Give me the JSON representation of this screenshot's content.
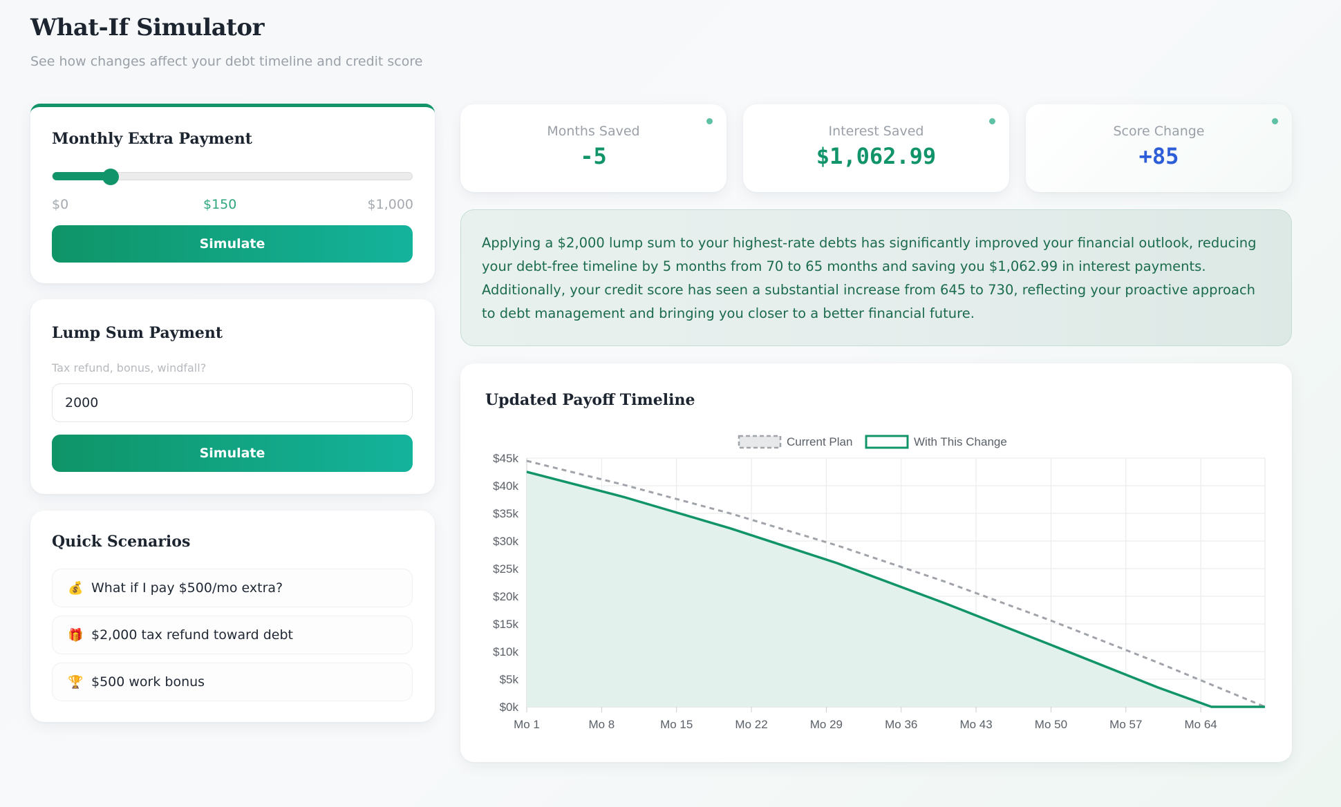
{
  "header": {
    "title": "What-If Simulator",
    "subtitle": "See how changes affect your debt timeline and credit score"
  },
  "extra_payment": {
    "title": "Monthly Extra Payment",
    "min_label": "$0",
    "current_label": "$150",
    "max_label": "$1,000",
    "min": 0,
    "max": 1000,
    "value": 150,
    "button_label": "Simulate"
  },
  "lump_sum": {
    "title": "Lump Sum Payment",
    "hint": "Tax refund, bonus, windfall?",
    "value": "2000",
    "button_label": "Simulate"
  },
  "quick_scenarios": {
    "title": "Quick Scenarios",
    "items": [
      {
        "icon": "money-bag-icon",
        "glyph": "💰",
        "label": "What if I pay $500/mo extra?"
      },
      {
        "icon": "gift-icon",
        "glyph": "🎁",
        "label": "$2,000 tax refund toward debt"
      },
      {
        "icon": "trophy-icon",
        "glyph": "🏆",
        "label": "$500 work bonus"
      }
    ]
  },
  "stats": {
    "months": {
      "label": "Months Saved",
      "value": "-5",
      "color": "#12946a"
    },
    "interest": {
      "label": "Interest Saved",
      "value": "$1,062.99",
      "color": "#12946a"
    },
    "score": {
      "label": "Score Change",
      "value": "+85",
      "color": "#2d5ed8"
    }
  },
  "insight": {
    "text": "Applying a $2,000 lump sum to your highest-rate debts has significantly improved your financial outlook, reducing your debt-free timeline by 5 months from 70 to 65 months and saving you $1,062.99 in interest payments. Additionally, your credit score has seen a substantial increase from 645 to 730, reflecting your proactive approach to debt management and bringing you closer to a better financial future."
  },
  "chart": {
    "title": "Updated Payoff Timeline"
  },
  "chart_data": {
    "type": "line",
    "title": "",
    "xlabel": "",
    "ylabel": "",
    "ylim": [
      0,
      45000
    ],
    "xlim": [
      1,
      70
    ],
    "x_ticks": [
      1,
      8,
      15,
      22,
      29,
      36,
      43,
      50,
      57,
      64
    ],
    "x_tick_labels": [
      "Mo 1",
      "Mo 8",
      "Mo 15",
      "Mo 22",
      "Mo 29",
      "Mo 36",
      "Mo 43",
      "Mo 50",
      "Mo 57",
      "Mo 64"
    ],
    "y_ticks": [
      0,
      5000,
      10000,
      15000,
      20000,
      25000,
      30000,
      35000,
      40000,
      45000
    ],
    "y_tick_labels": [
      "$0k",
      "$5k",
      "$10k",
      "$15k",
      "$20k",
      "$25k",
      "$30k",
      "$35k",
      "$40k",
      "$45k"
    ],
    "legend_position": "top",
    "grid": true,
    "series": [
      {
        "name": "Current Plan",
        "style": "dashed",
        "color": "#a0a3aa",
        "points": [
          [
            1,
            44500
          ],
          [
            10,
            40200
          ],
          [
            20,
            35000
          ],
          [
            30,
            29200
          ],
          [
            40,
            22700
          ],
          [
            50,
            15600
          ],
          [
            60,
            8000
          ],
          [
            70,
            0
          ]
        ]
      },
      {
        "name": "With This Change",
        "style": "solid-filled",
        "color": "#12946a",
        "fill": "#e2f1ec",
        "points": [
          [
            1,
            42500
          ],
          [
            10,
            38000
          ],
          [
            20,
            32300
          ],
          [
            30,
            26000
          ],
          [
            40,
            18800
          ],
          [
            50,
            11200
          ],
          [
            60,
            3500
          ],
          [
            65,
            0
          ],
          [
            70,
            0
          ]
        ]
      }
    ]
  }
}
